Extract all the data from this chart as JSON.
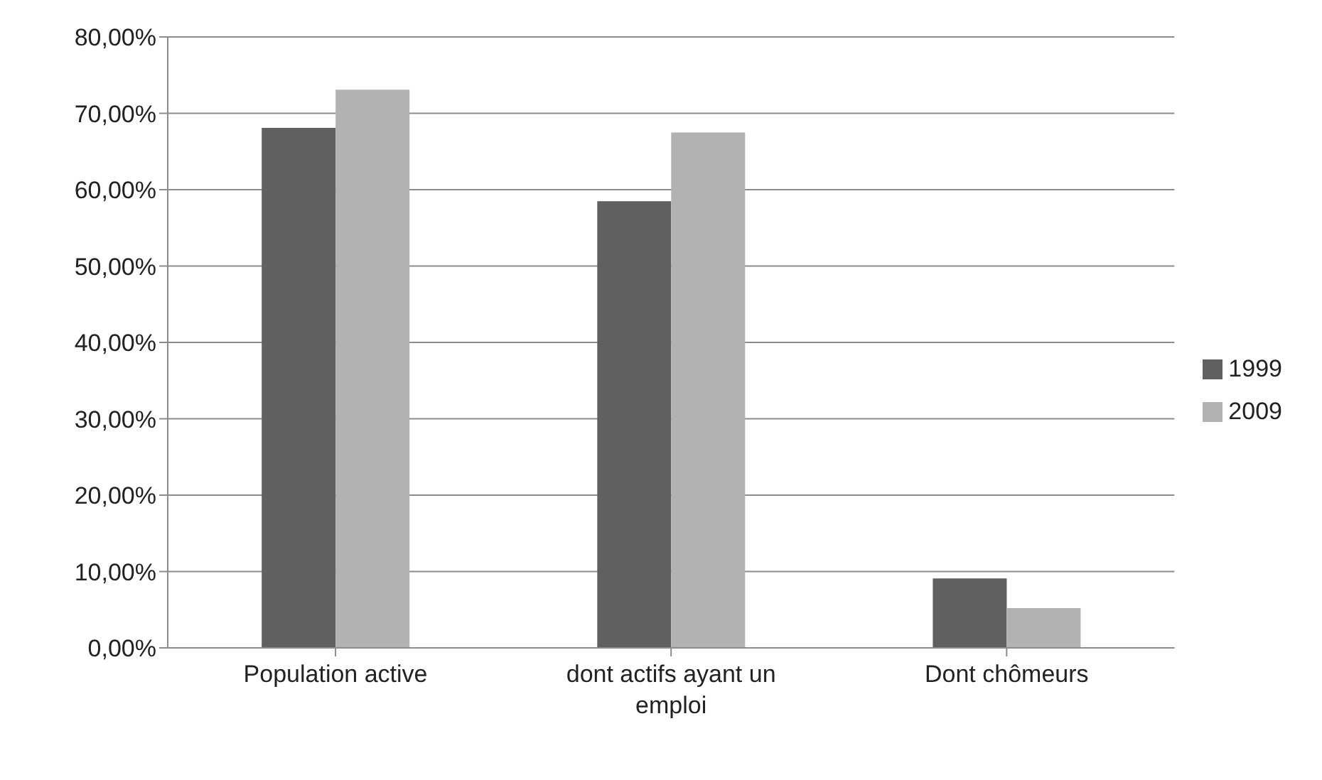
{
  "chart_data": {
    "type": "bar",
    "categories": [
      "Population active",
      "dont actifs ayant un emploi",
      "Dont chômeurs"
    ],
    "series": [
      {
        "name": "1999",
        "color": "#606060",
        "values": [
          68.1,
          58.5,
          9.1
        ]
      },
      {
        "name": "2009",
        "color": "#b2b2b2",
        "values": [
          73.1,
          67.5,
          5.2
        ]
      }
    ],
    "ylim": [
      0,
      80
    ],
    "yticks": [
      {
        "value": 0,
        "label": "0,00%"
      },
      {
        "value": 10,
        "label": "10,00%"
      },
      {
        "value": 20,
        "label": "20,00%"
      },
      {
        "value": 30,
        "label": "30,00%"
      },
      {
        "value": 40,
        "label": "40,00%"
      },
      {
        "value": 50,
        "label": "50,00%"
      },
      {
        "value": 60,
        "label": "60,00%"
      },
      {
        "value": 70,
        "label": "70,00%"
      },
      {
        "value": 80,
        "label": "80,00%"
      }
    ],
    "grid": "y",
    "legend": "right"
  }
}
